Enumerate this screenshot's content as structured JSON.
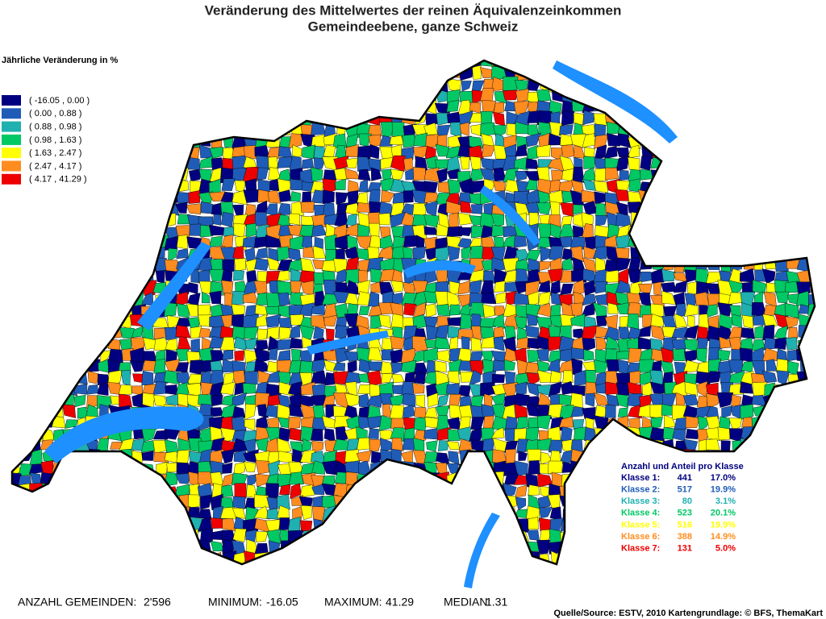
{
  "title": "Veränderung des Mittelwertes der reinen Äquivalenzeinkommen",
  "subtitle": "Gemeindeebene, ganze Schweiz",
  "legend": {
    "title": "Jährliche Veränderung in %",
    "classes": [
      {
        "label": "( -16.05 , 0.00 )",
        "color": "#000080"
      },
      {
        "label": "( 0.00 , 0.88 )",
        "color": "#1f5cb8"
      },
      {
        "label": "( 0.88 , 0.98 )",
        "color": "#1fb0b0"
      },
      {
        "label": "( 0.98 , 1.63 )",
        "color": "#00c864"
      },
      {
        "label": "( 1.63 , 2.47 )",
        "color": "#ffff00"
      },
      {
        "label": "( 2.47 , 4.17 )",
        "color": "#ff8c1e"
      },
      {
        "label": "( 4.17 , 41.29 )",
        "color": "#ee0000"
      }
    ]
  },
  "class_stats": {
    "title": "Anzahl und Anteil pro Klasse",
    "rows": [
      {
        "label": "Klasse 1:",
        "count": 441,
        "share": "17.0%"
      },
      {
        "label": "Klasse 2:",
        "count": 517,
        "share": "19.9%"
      },
      {
        "label": "Klasse 3:",
        "count": 80,
        "share": "3.1%"
      },
      {
        "label": "Klasse 4:",
        "count": 523,
        "share": "20.1%"
      },
      {
        "label": "Klasse 5:",
        "count": 516,
        "share": "19.9%"
      },
      {
        "label": "Klasse 6:",
        "count": 388,
        "share": "14.9%"
      },
      {
        "label": "Klasse 7:",
        "count": 131,
        "share": "5.0%"
      }
    ]
  },
  "footer": {
    "count_label": "ANZAHL GEMEINDEN:",
    "count": "2'596",
    "minimum_label": "MINIMUM:",
    "minimum": -16.05,
    "maximum_label": "MAXIMUM:",
    "maximum": 41.29,
    "median_label": "MEDIAN:",
    "median": 1.31
  },
  "source": "Quelle/Source: ESTV, 2010 Kartengrundlage: © BFS, ThemaKart"
}
